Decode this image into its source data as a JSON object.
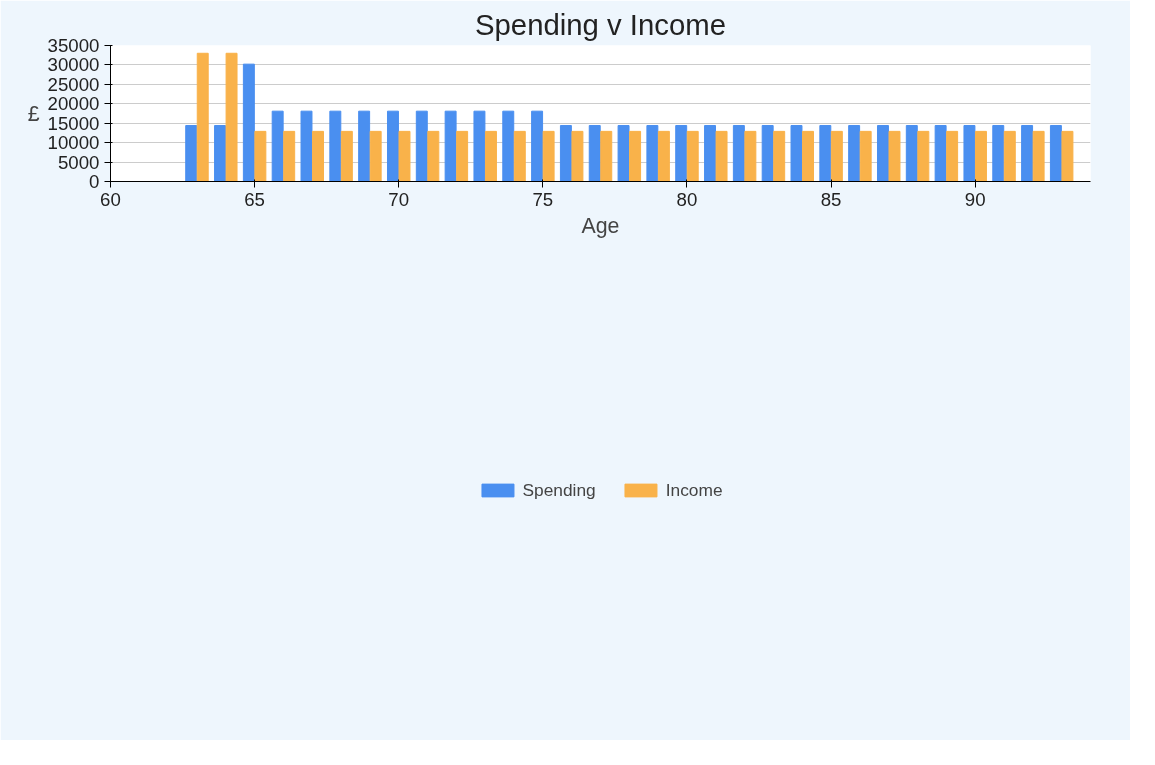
{
  "chart_data": {
    "type": "bar",
    "title": "Spending v Income",
    "xlabel": "Age",
    "ylabel": "£",
    "x": [
      63,
      64,
      65,
      66,
      67,
      68,
      69,
      70,
      71,
      72,
      73,
      74,
      75,
      76,
      77,
      78,
      79,
      80,
      81,
      82,
      83,
      84,
      85,
      86,
      87,
      88,
      89,
      90,
      91,
      92,
      93
    ],
    "series": [
      {
        "name": "Spending",
        "color": "#4a8ff0",
        "values": [
          14400,
          14400,
          30200,
          18100,
          18100,
          18100,
          18100,
          18100,
          18100,
          18100,
          18100,
          18100,
          18100,
          14400,
          14400,
          14400,
          14400,
          14400,
          14400,
          14400,
          14400,
          14400,
          14400,
          14400,
          14400,
          14400,
          14400,
          14400,
          14400,
          14400,
          14400
        ]
      },
      {
        "name": "Income",
        "color": "#f9b24a",
        "values": [
          33000,
          33000,
          12900,
          12900,
          12900,
          12900,
          12900,
          12900,
          12900,
          12900,
          12900,
          12900,
          12900,
          12900,
          12900,
          12900,
          12900,
          12900,
          12900,
          12900,
          12900,
          12900,
          12900,
          12900,
          12900,
          12900,
          12900,
          12900,
          12900,
          12900,
          12900
        ]
      }
    ],
    "xlim": [
      60,
      94
    ],
    "xticks": [
      60,
      65,
      70,
      75,
      80,
      85,
      90
    ],
    "ylim": [
      0,
      35000
    ],
    "yticks": [
      0,
      5000,
      10000,
      15000,
      20000,
      25000,
      30000,
      35000
    ],
    "grid": "y",
    "legend": "bottom"
  }
}
